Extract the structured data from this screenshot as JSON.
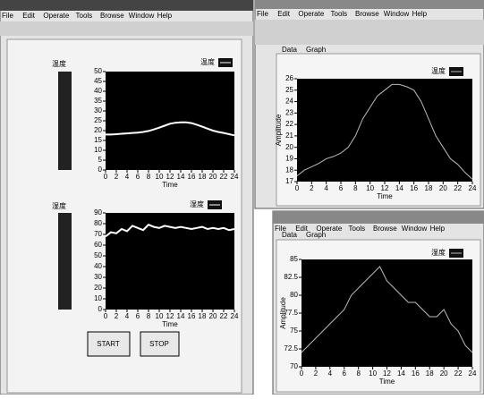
{
  "ui": {
    "menu": [
      "File",
      "Edit",
      "Operate",
      "Tools",
      "Browse",
      "Window",
      "Help"
    ],
    "tabs": [
      "Data",
      "Graph"
    ],
    "buttons": [
      "START",
      "STOP"
    ],
    "indicators": [
      "温度",
      "湿度"
    ]
  },
  "chart_data": [
    {
      "type": "line",
      "xlabel": "Time",
      "x": [
        0,
        1,
        2,
        3,
        4,
        5,
        6,
        7,
        8,
        9,
        10,
        11,
        12,
        13,
        14,
        15,
        16,
        17,
        18,
        19,
        20,
        21,
        22,
        23,
        24
      ],
      "series": [
        {
          "name": "温度",
          "color": "#ffffff",
          "values": [
            18,
            18,
            18.2,
            18.4,
            18.6,
            18.8,
            19,
            19.3,
            19.8,
            20.6,
            21.5,
            22.5,
            23.5,
            24,
            24.2,
            24.2,
            23.8,
            23,
            22,
            21,
            20,
            19.3,
            18.8,
            18.2,
            17.6
          ]
        }
      ],
      "xlim": [
        0,
        24
      ],
      "ylim": [
        0,
        50
      ],
      "xticks": [
        0,
        2,
        4,
        6,
        8,
        10,
        12,
        14,
        16,
        18,
        20,
        22,
        24
      ],
      "yticks": [
        0,
        5,
        10,
        15,
        20,
        25,
        30,
        35,
        40,
        45,
        50
      ]
    },
    {
      "type": "line",
      "xlabel": "Time",
      "x": [
        0,
        1,
        2,
        3,
        4,
        5,
        6,
        7,
        8,
        9,
        10,
        11,
        12,
        13,
        14,
        15,
        16,
        17,
        18,
        19,
        20,
        21,
        22,
        23,
        24
      ],
      "series": [
        {
          "name": "湿度",
          "color": "#ffffff",
          "values": [
            68,
            72,
            71,
            75,
            73,
            78,
            76,
            74,
            79,
            77,
            76,
            78,
            77,
            76,
            77,
            76,
            75,
            76,
            77,
            75,
            76,
            75,
            76,
            74,
            75
          ]
        }
      ],
      "xlim": [
        0,
        24
      ],
      "ylim": [
        0,
        90
      ],
      "xticks": [
        0,
        2,
        4,
        6,
        8,
        10,
        12,
        14,
        16,
        18,
        20,
        22,
        24
      ],
      "yticks": [
        0,
        10,
        20,
        30,
        40,
        50,
        60,
        70,
        80,
        90
      ]
    },
    {
      "type": "line",
      "xlabel": "Time",
      "ylabel": "Amplitude",
      "x": [
        0,
        1,
        2,
        3,
        4,
        5,
        6,
        7,
        8,
        9,
        10,
        11,
        12,
        13,
        14,
        15,
        16,
        17,
        18,
        19,
        20,
        21,
        22,
        23,
        24
      ],
      "series": [
        {
          "name": "温度",
          "color": "#bbbbbb",
          "values": [
            17.5,
            18,
            18.3,
            18.6,
            19,
            19.2,
            19.5,
            20,
            21,
            22.5,
            23.5,
            24.5,
            25,
            25.5,
            25.5,
            25.3,
            25,
            24,
            22.5,
            21,
            20,
            19,
            18.5,
            17.8,
            17.2
          ]
        }
      ],
      "xlim": [
        0,
        24
      ],
      "ylim": [
        17,
        26
      ],
      "xticks": [
        0,
        2,
        4,
        6,
        8,
        10,
        12,
        14,
        16,
        18,
        20,
        22,
        24
      ],
      "yticks": [
        17,
        18,
        19,
        20,
        21,
        22,
        23,
        24,
        25,
        26
      ]
    },
    {
      "type": "line",
      "xlabel": "Time",
      "ylabel": "Amplitude",
      "x": [
        0,
        1,
        2,
        3,
        4,
        5,
        6,
        7,
        8,
        9,
        10,
        11,
        12,
        13,
        14,
        15,
        16,
        17,
        18,
        19,
        20,
        21,
        22,
        23,
        24
      ],
      "series": [
        {
          "name": "湿度",
          "color": "#bbbbbb",
          "values": [
            72,
            73,
            74,
            75,
            76,
            77,
            78,
            80,
            81,
            82,
            83,
            84,
            82,
            81,
            80,
            79,
            79,
            78,
            77,
            77,
            78,
            76,
            75,
            73,
            72
          ]
        }
      ],
      "xlim": [
        0,
        24
      ],
      "ylim": [
        70,
        85
      ],
      "xticks": [
        0,
        2,
        4,
        6,
        8,
        10,
        12,
        14,
        16,
        18,
        20,
        22,
        24
      ],
      "yticks": [
        70,
        72.5,
        75,
        77.5,
        80,
        82.5,
        85
      ]
    }
  ]
}
